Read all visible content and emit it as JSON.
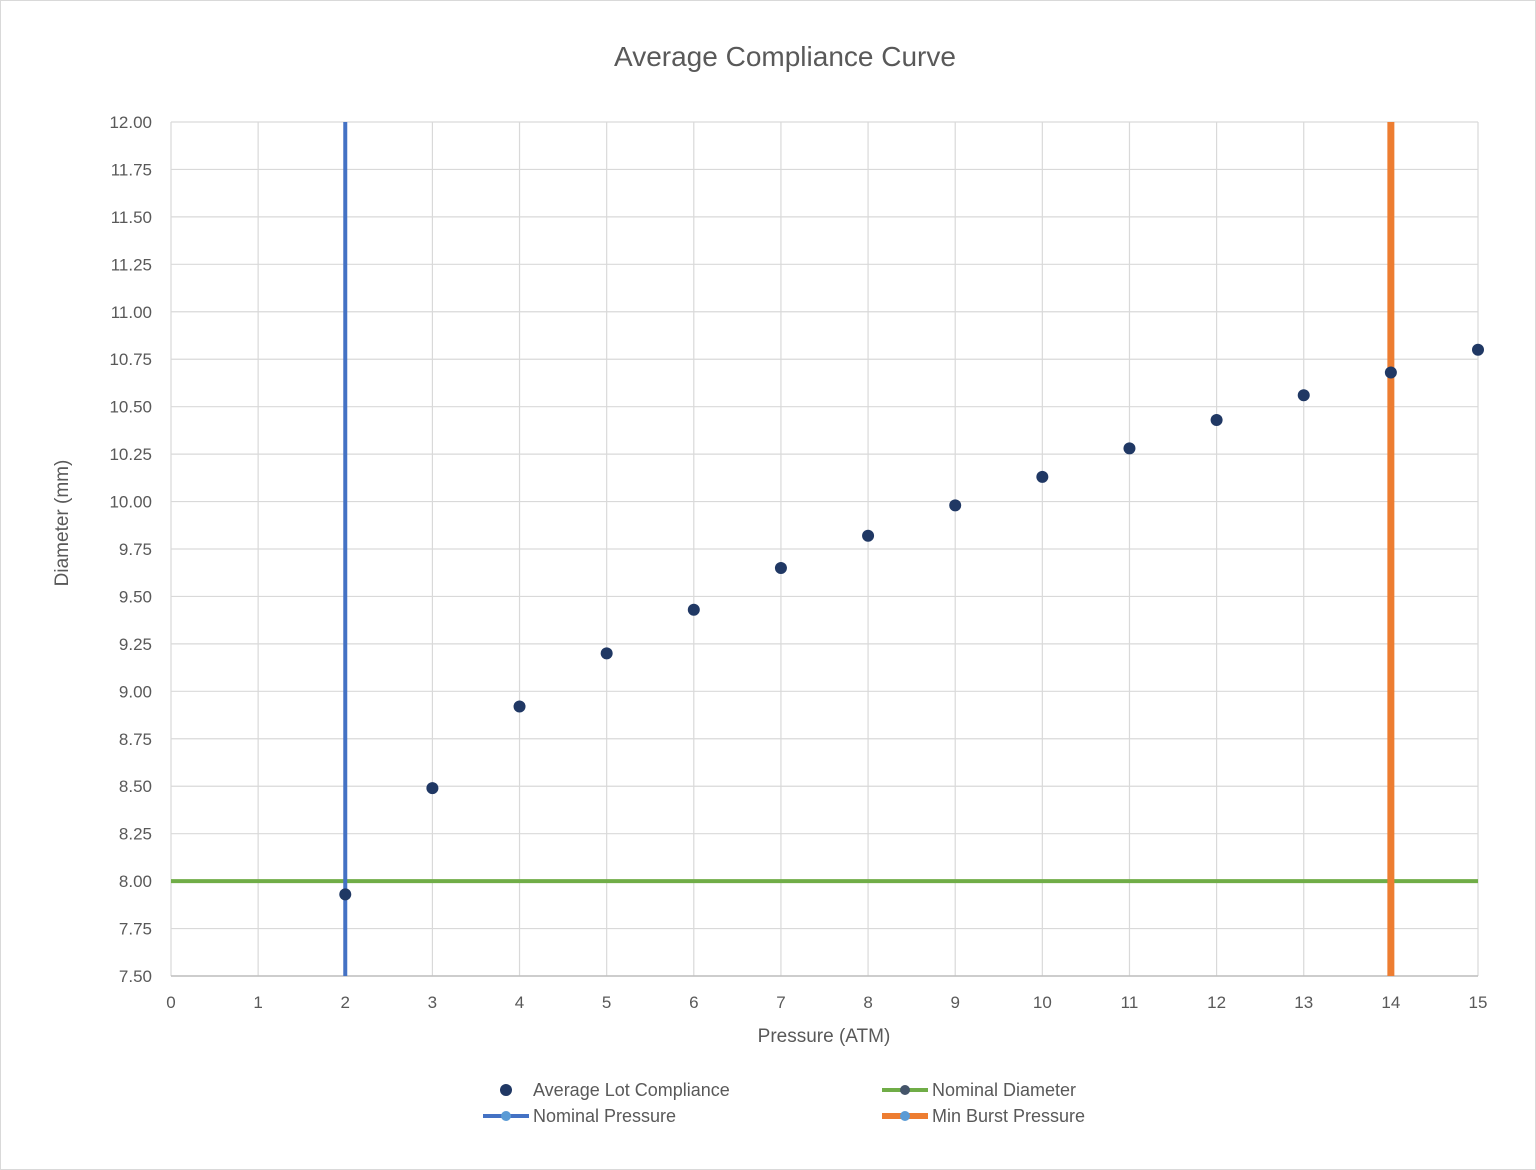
{
  "chart_data": {
    "type": "scatter",
    "title": "Average Compliance Curve",
    "xlabel": "Pressure (ATM)",
    "ylabel": "Diameter (mm)",
    "xlim": [
      0,
      15
    ],
    "ylim": [
      7.5,
      12.0
    ],
    "x_ticks": [
      "0",
      "1",
      "2",
      "3",
      "4",
      "5",
      "6",
      "7",
      "8",
      "9",
      "10",
      "11",
      "12",
      "13",
      "14",
      "15"
    ],
    "y_ticks": [
      "7.50",
      "7.75",
      "8.00",
      "8.25",
      "8.50",
      "8.75",
      "9.00",
      "9.25",
      "9.50",
      "9.75",
      "10.00",
      "10.25",
      "10.50",
      "10.75",
      "11.00",
      "11.25",
      "11.50",
      "11.75",
      "12.00"
    ],
    "grid": true,
    "legend_position": "bottom",
    "series": [
      {
        "name": "Average Lot Compliance",
        "kind": "markers",
        "color": "#203864",
        "x": [
          2,
          3,
          4,
          5,
          6,
          7,
          8,
          9,
          10,
          11,
          12,
          13,
          14,
          15
        ],
        "y": [
          7.93,
          8.49,
          8.92,
          9.2,
          9.43,
          9.65,
          9.82,
          9.98,
          10.13,
          10.28,
          10.43,
          10.56,
          10.68,
          10.8
        ]
      },
      {
        "name": "Nominal Diameter",
        "kind": "hline",
        "color": "#70ad47",
        "marker_color": "#44546a",
        "y": 8.0
      },
      {
        "name": "Nominal Pressure",
        "kind": "vline",
        "color": "#4472c4",
        "marker_color": "#5b9bd5",
        "x": 2
      },
      {
        "name": "Min Burst Pressure",
        "kind": "vline",
        "color": "#ed7d31",
        "marker_color": "#5b9bd5",
        "x": 14
      }
    ]
  }
}
